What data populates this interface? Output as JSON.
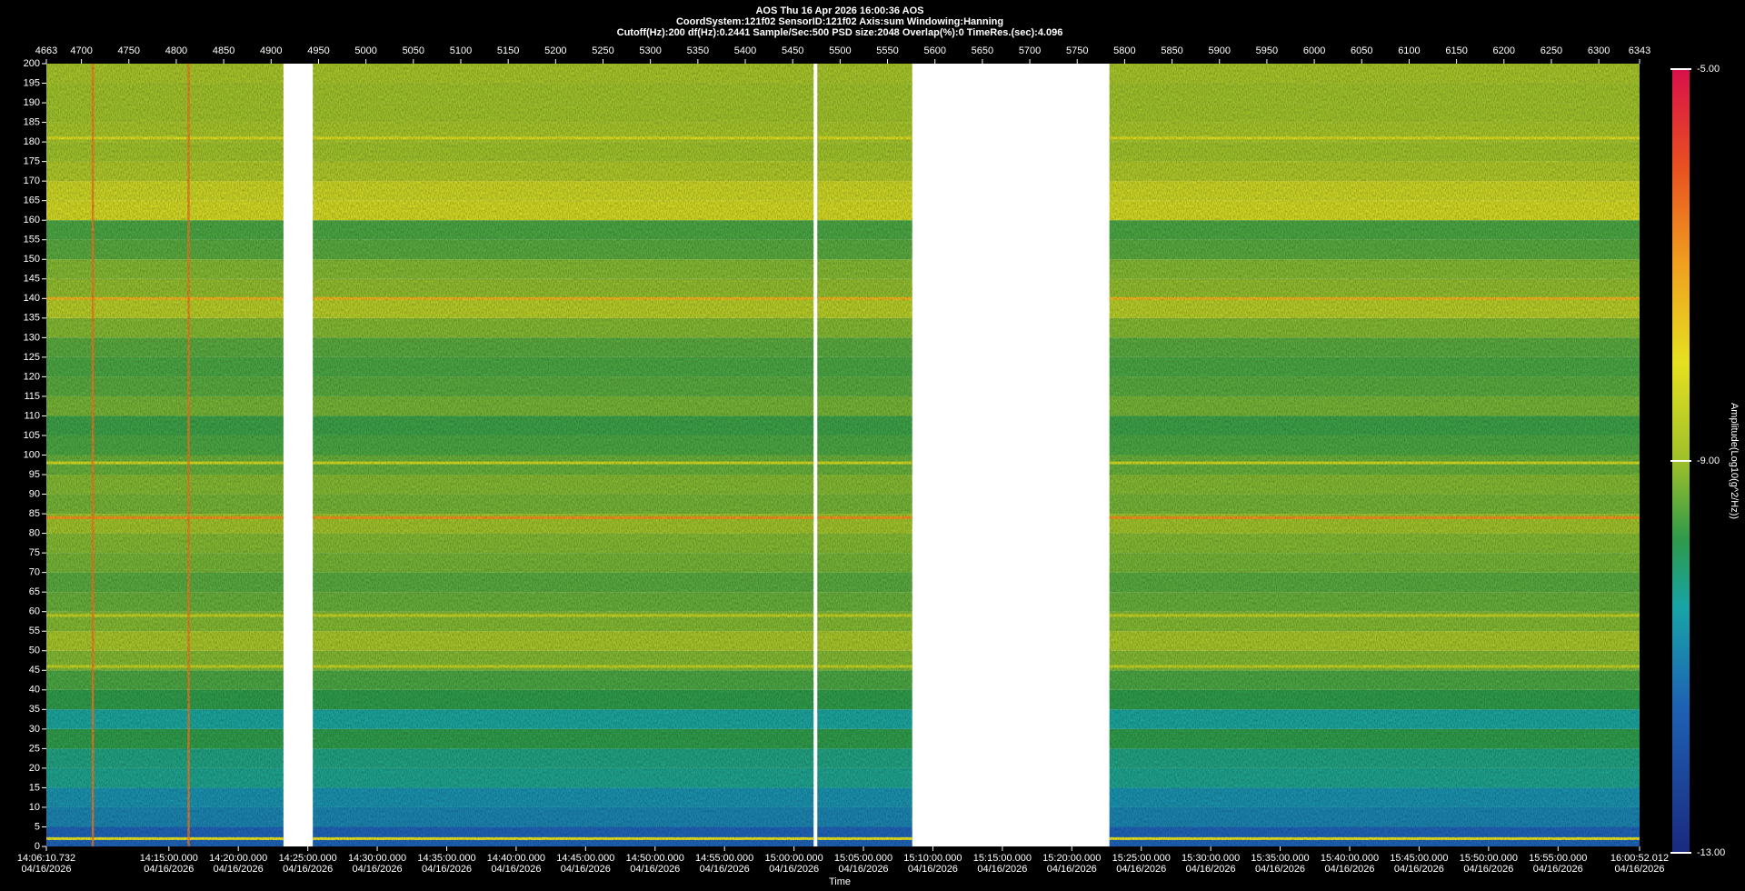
{
  "chart_data": {
    "type": "spectrogram",
    "title": "AOS  Thu 16 Apr 2026 16:00:36  AOS",
    "subtitle": "CoordSystem:121f02   SensorID:121f02   Axis:sum   Windowing:Hanning",
    "parameters": "Cutoff(Hz):200     df(Hz):0.2441     Sample/Sec:500     PSD size:2048     Overlap(%):0     TimeRes.(sec):4.096",
    "x_label": "Time",
    "colorbar_label": "Amplitude(Log10(g^2/Hz))",
    "xlim": [
      4663,
      6343
    ],
    "xticks": [
      4663,
      4700,
      4750,
      4800,
      4850,
      4900,
      4950,
      5000,
      5050,
      5100,
      5150,
      5200,
      5250,
      5300,
      5350,
      5400,
      5450,
      5500,
      5550,
      5600,
      5650,
      5700,
      5750,
      5800,
      5850,
      5900,
      5950,
      6000,
      6050,
      6100,
      6150,
      6200,
      6250,
      6300,
      6343
    ],
    "time_ticks": [
      {
        "value": 4663,
        "label": "14:06:10.732"
      },
      {
        "value": 4792.2,
        "label": "14:15:00.000"
      },
      {
        "value": 4865.4,
        "label": "14:20:00.000"
      },
      {
        "value": 4938.7,
        "label": "14:25:00.000"
      },
      {
        "value": 5011.9,
        "label": "14:30:00.000"
      },
      {
        "value": 5085.2,
        "label": "14:35:00.000"
      },
      {
        "value": 5158.4,
        "label": "14:40:00.000"
      },
      {
        "value": 5231.6,
        "label": "14:45:00.000"
      },
      {
        "value": 5304.9,
        "label": "14:50:00.000"
      },
      {
        "value": 5378.1,
        "label": "14:55:00.000"
      },
      {
        "value": 5451.4,
        "label": "15:00:00.000"
      },
      {
        "value": 5524.6,
        "label": "15:05:00.000"
      },
      {
        "value": 5597.8,
        "label": "15:10:00.000"
      },
      {
        "value": 5671.1,
        "label": "15:15:00.000"
      },
      {
        "value": 5744.3,
        "label": "15:20:00.000"
      },
      {
        "value": 5817.6,
        "label": "15:25:00.000"
      },
      {
        "value": 5890.8,
        "label": "15:30:00.000"
      },
      {
        "value": 5964.0,
        "label": "15:35:00.000"
      },
      {
        "value": 6037.3,
        "label": "15:40:00.000"
      },
      {
        "value": 6110.5,
        "label": "15:45:00.000"
      },
      {
        "value": 6183.8,
        "label": "15:50:00.000"
      },
      {
        "value": 6257.0,
        "label": "15:55:00.000"
      },
      {
        "value": 6343,
        "label": "16:00:52.012"
      }
    ],
    "time_dates": [
      "04/16/2026",
      "04/16/2026",
      "04/16/2026",
      "04/16/2026",
      "04/16/2026",
      "04/16/2026",
      "04/16/2026",
      "04/16/2026",
      "04/16/2026",
      "04/16/2026",
      "04/16/2026",
      "04/16/2026",
      "04/16/2026",
      "04/16/2026",
      "04/16/2026",
      "04/16/2026",
      "04/16/2026",
      "04/16/2026",
      "04/16/2026",
      "04/16/2026",
      "04/16/2026",
      "04/16/2026",
      "04/16/2026"
    ],
    "ylim": [
      0,
      200
    ],
    "yticks": [
      0,
      5,
      10,
      15,
      20,
      25,
      30,
      35,
      40,
      45,
      50,
      55,
      60,
      65,
      70,
      75,
      80,
      85,
      90,
      95,
      100,
      105,
      110,
      115,
      120,
      125,
      130,
      135,
      140,
      145,
      150,
      155,
      160,
      165,
      170,
      175,
      180,
      185,
      190,
      195,
      200
    ],
    "segments": [
      [
        4663,
        4913
      ],
      [
        4944,
        5472
      ],
      [
        5476,
        5576
      ],
      [
        5784,
        6343
      ]
    ],
    "amplitudes": [
      -11.5,
      -11.0,
      -10.8,
      -10.3,
      -10.2,
      -9.8,
      -10.4,
      -9.8,
      -9.6,
      -9.2,
      -8.9,
      -9.2,
      -9.4,
      -9.5,
      -9.3,
      -9.2,
      -9.0,
      -9.3,
      -9.2,
      -9.4,
      -9.6,
      -9.7,
      -9.3,
      -9.5,
      -9.6,
      -9.5,
      -9.2,
      -8.7,
      -9.1,
      -9.2,
      -9.5,
      -9.6,
      -8.3,
      -8.4,
      -8.8,
      -9.0,
      -8.9,
      -9.0,
      -9.0,
      -8.9
    ],
    "lines": [
      {
        "freq": 140,
        "value": -7.3
      },
      {
        "freq": 84,
        "value": -6.8
      },
      {
        "freq": 181,
        "value": -8.2
      },
      {
        "freq": 98,
        "value": -8.3
      },
      {
        "freq": 59,
        "value": -8.5
      },
      {
        "freq": 46,
        "value": -8.5
      },
      {
        "freq": 2,
        "value": -8.0
      }
    ],
    "vertical_lines": [
      {
        "x": 4712,
        "value": -6.5
      },
      {
        "x": 4813,
        "value": -6.5
      }
    ],
    "clim": [
      -13,
      -5
    ],
    "cticks": [
      {
        "value": -5,
        "label": "-5.00"
      },
      {
        "value": -9,
        "label": "-9.00"
      },
      {
        "value": -13,
        "label": "-13.00"
      }
    ],
    "colormap": [
      [
        -13,
        "#1a2a80"
      ],
      [
        -11.5,
        "#1e62b4"
      ],
      [
        -10.5,
        "#18a4a8"
      ],
      [
        -9.8,
        "#2e9a4a"
      ],
      [
        -9,
        "#9ec02a"
      ],
      [
        -8,
        "#e6e020"
      ],
      [
        -7,
        "#f0a020"
      ],
      [
        -6,
        "#e85020"
      ],
      [
        -5,
        "#d8104a"
      ]
    ]
  }
}
